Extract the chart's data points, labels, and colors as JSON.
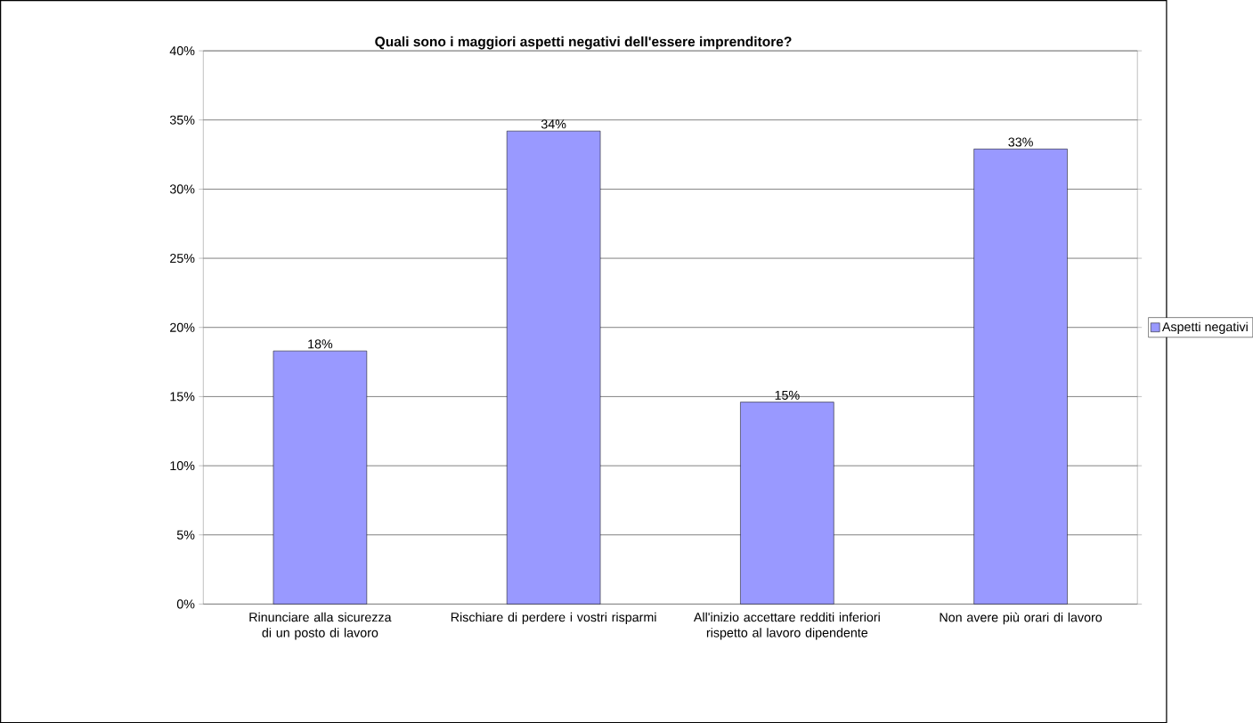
{
  "chart_data": {
    "type": "bar",
    "title": "Quali sono i maggiori aspetti negativi dell'essere imprenditore?",
    "categories": [
      "Rinunciare alla sicurezza di un posto di lavoro",
      "Rischiare di perdere i vostri risparmi",
      "All'inizio accettare redditi inferiori rispetto al lavoro dipendente",
      "Non avere più orari di lavoro"
    ],
    "series": [
      {
        "name": "Aspetti negativi",
        "color": "#9999ff",
        "values": [
          18.3,
          34.2,
          14.6,
          32.9
        ],
        "value_labels": [
          "18%",
          "34%",
          "15%",
          "33%"
        ]
      }
    ],
    "ylim": [
      0,
      40
    ],
    "yticks": [
      {
        "value": 0,
        "label": "0%"
      },
      {
        "value": 5,
        "label": "5%"
      },
      {
        "value": 10,
        "label": "10%"
      },
      {
        "value": 15,
        "label": "15%"
      },
      {
        "value": 20,
        "label": "20%"
      },
      {
        "value": 25,
        "label": "25%"
      },
      {
        "value": 30,
        "label": "30%"
      },
      {
        "value": 35,
        "label": "35%"
      },
      {
        "value": 40,
        "label": "40%"
      }
    ],
    "grid": "y",
    "legend": "right"
  }
}
